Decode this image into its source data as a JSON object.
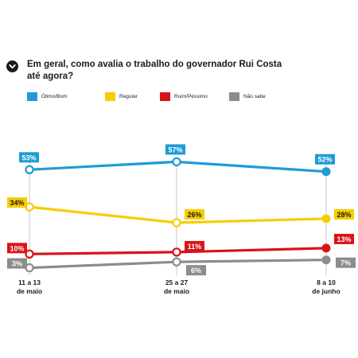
{
  "header": {
    "title": "Em geral, como avalia o trabalho do governador Rui Costa até agora?",
    "icon": "chevron-down-icon"
  },
  "colors": {
    "otimo": "#1e9bd7",
    "regular": "#f6cd00",
    "ruim": "#d7141a",
    "nao_sabe": "#8c8c8c",
    "grid": "#c8c8c8"
  },
  "chart_data": {
    "type": "line",
    "categories": [
      "11 a 13\nde maio",
      "25 a 27\nde maio",
      "8 a 10\nde junho"
    ],
    "category_labels": [
      {
        "line1": "11 a 13",
        "line2": "de maio"
      },
      {
        "line1": "25 a 27",
        "line2": "de maio"
      },
      {
        "line1": "8 a 10",
        "line2": "de junho"
      }
    ],
    "series": [
      {
        "key": "otimo",
        "name": "Ótimo/Bom",
        "color": "#1e9bd7",
        "values": [
          53,
          57,
          52
        ],
        "labels": [
          "53%",
          "57%",
          "52%"
        ]
      },
      {
        "key": "regular",
        "name": "Regular",
        "color": "#f6cd00",
        "values": [
          34,
          26,
          28
        ],
        "labels": [
          "34%",
          "26%",
          "28%"
        ]
      },
      {
        "key": "ruim",
        "name": "Ruim/Péssimo",
        "color": "#d7141a",
        "values": [
          10,
          11,
          13
        ],
        "labels": [
          "10%",
          "11%",
          "13%"
        ]
      },
      {
        "key": "nao_sabe",
        "name": "Não sabe",
        "color": "#8c8c8c",
        "values": [
          3,
          6,
          7
        ],
        "labels": [
          "3%",
          "6%",
          "7%"
        ]
      }
    ],
    "ylim": [
      0,
      60
    ],
    "grid": "vertical lines at each survey date",
    "legend": "top-left",
    "title": "",
    "xlabel": "",
    "ylabel": ""
  }
}
